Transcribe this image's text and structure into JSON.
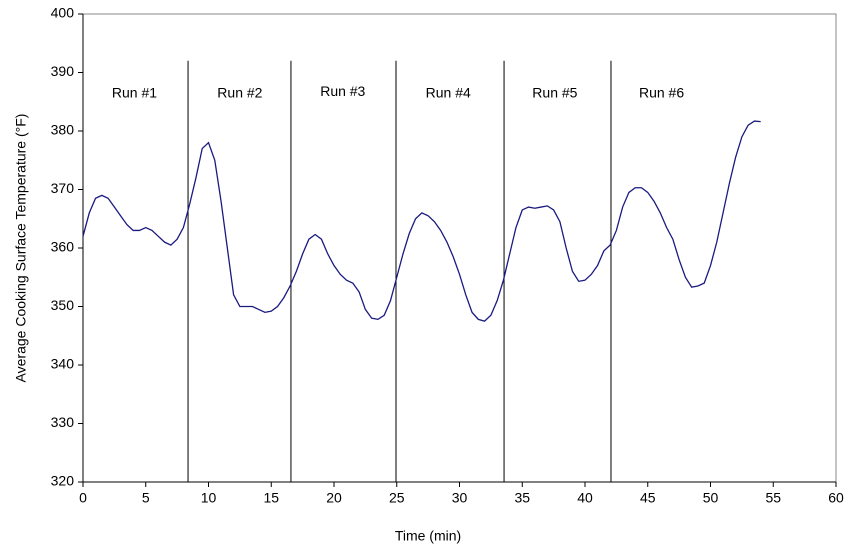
{
  "chart_data": {
    "type": "line",
    "xlabel": "Time (min)",
    "ylabel": "Average  Cooking Surface Temperature (°F)",
    "color": "#1a1a80",
    "x": [
      0,
      0.5,
      1,
      1.5,
      2,
      2.5,
      3,
      3.5,
      4,
      4.5,
      5,
      5.5,
      6,
      6.5,
      7,
      7.5,
      8,
      8.5,
      9,
      9.5,
      10,
      10.5,
      11,
      11.5,
      12,
      12.5,
      13,
      13.5,
      14,
      14.5,
      15,
      15.5,
      16,
      16.5,
      17,
      17.5,
      18,
      18.5,
      19,
      19.5,
      20,
      20.5,
      21,
      21.5,
      22,
      22.5,
      23,
      23.5,
      24,
      24.5,
      25,
      25.5,
      26,
      26.5,
      27,
      27.5,
      28,
      28.5,
      29,
      29.5,
      30,
      30.5,
      31,
      31.5,
      32,
      32.5,
      33,
      33.5,
      34,
      34.5,
      35,
      35.5,
      36,
      36.5,
      37,
      37.5,
      38,
      38.5,
      39,
      39.5,
      40,
      40.5,
      41,
      41.5,
      42,
      42.5,
      43,
      43.5,
      44,
      44.5,
      45,
      45.5,
      46,
      46.5,
      47,
      47.5,
      48,
      48.5,
      49,
      49.5,
      50,
      50.5,
      51,
      51.5,
      52,
      52.5,
      53,
      53.5,
      54
    ],
    "values": [
      362,
      366,
      368.5,
      369,
      368.5,
      367,
      365.5,
      364,
      363,
      363,
      363.5,
      363,
      362,
      361,
      360.5,
      361.5,
      363.5,
      367.5,
      372,
      377,
      378,
      375,
      368,
      360,
      352,
      350,
      350,
      350,
      349.5,
      349,
      349.2,
      350,
      351.5,
      353.5,
      356,
      359,
      361.5,
      362.3,
      361.5,
      359,
      357,
      355.5,
      354.5,
      354,
      352.5,
      349.5,
      348,
      347.8,
      348.5,
      351,
      355,
      359,
      362.5,
      365,
      366,
      365.5,
      364.5,
      363,
      361,
      358.5,
      355.5,
      352,
      349,
      347.8,
      347.5,
      348.5,
      351,
      354.5,
      359,
      363.5,
      366.5,
      367,
      366.8,
      367,
      367.2,
      366.5,
      364.5,
      360,
      356,
      354.3,
      354.5,
      355.5,
      357,
      359.5,
      360.5,
      363,
      367,
      369.5,
      370.3,
      370.3,
      369.5,
      368,
      366,
      363.5,
      361.5,
      358,
      355,
      353.3,
      353.5,
      354,
      357,
      361,
      366,
      371,
      375.5,
      379,
      381,
      381.7,
      381.6
    ],
    "run_lines": [
      8.37,
      16.57,
      24.94,
      33.55,
      42.07
    ],
    "annotations": [
      {
        "text": "Run #1",
        "x": 4.1,
        "y": 386.4
      },
      {
        "text": "Run #2",
        "x": 12.5,
        "y": 386.4
      },
      {
        "text": "Run #3",
        "x": 20.7,
        "y": 386.6
      },
      {
        "text": "Run #4",
        "x": 29.1,
        "y": 386.4
      },
      {
        "text": "Run #5",
        "x": 37.6,
        "y": 386.4
      },
      {
        "text": "Run #6",
        "x": 46.1,
        "y": 386.4
      }
    ],
    "xlim": [
      0,
      60
    ],
    "xticks": [
      0,
      5,
      10,
      15,
      20,
      25,
      30,
      35,
      40,
      45,
      50,
      55,
      60
    ],
    "ylim": [
      320,
      400
    ],
    "yticks": [
      320,
      330,
      340,
      350,
      360,
      370,
      380,
      390,
      400
    ]
  }
}
